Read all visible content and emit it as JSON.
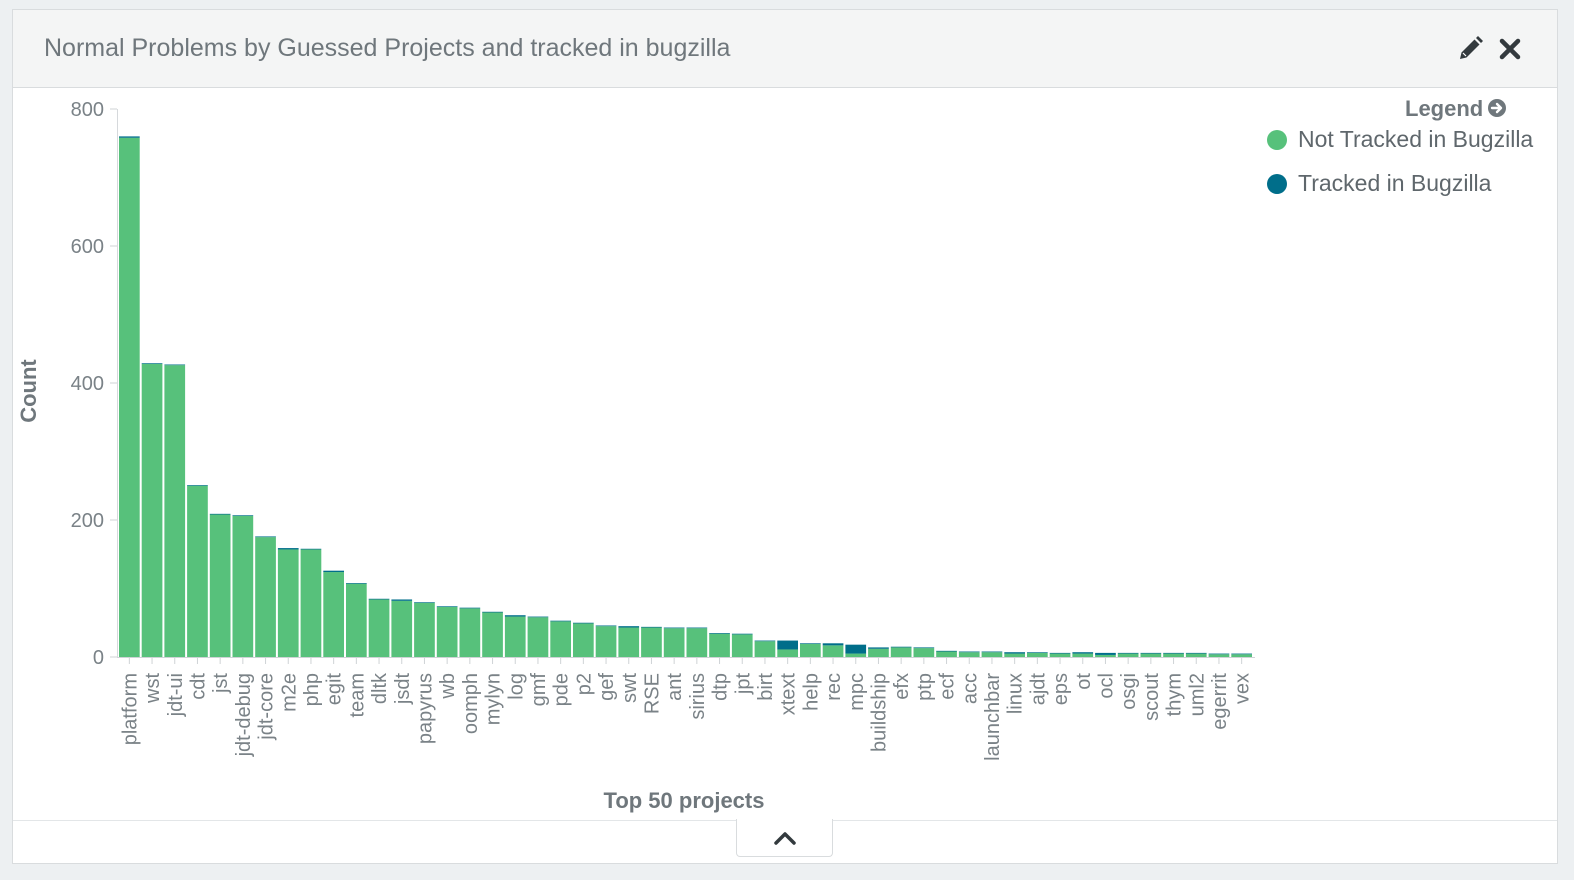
{
  "panel": {
    "title": "Normal Problems by Guessed Projects and tracked in bugzilla",
    "edit_icon": "pencil-icon",
    "close_icon": "close-icon",
    "collapse_icon": "chevron-up-icon"
  },
  "legend": {
    "title": "Legend",
    "toggle_icon": "arrow-circle-right-icon"
  },
  "chart_data": {
    "type": "bar",
    "stacked": true,
    "xlabel": "Top 50 projects",
    "ylabel": "Count",
    "ylim": [
      0,
      800
    ],
    "yticks": [
      0,
      200,
      400,
      600,
      800
    ],
    "grid": false,
    "legend_position": "top-right",
    "categories": [
      "platform",
      "wst",
      "jdt-ui",
      "cdt",
      "jst",
      "jdt-debug",
      "jdt-core",
      "m2e",
      "php",
      "egit",
      "team",
      "dltk",
      "jsdt",
      "papyrus",
      "wb",
      "oomph",
      "mylyn",
      "log",
      "gmf",
      "pde",
      "p2",
      "gef",
      "swt",
      "RSE",
      "ant",
      "sirius",
      "dtp",
      "jpt",
      "birt",
      "xtext",
      "help",
      "rec",
      "mpc",
      "buildship",
      "efx",
      "ptp",
      "ecf",
      "acc",
      "launchbar",
      "linux",
      "ajdt",
      "eps",
      "ot",
      "ocl",
      "osgi",
      "scout",
      "thym",
      "uml2",
      "egerrit",
      "vex"
    ],
    "series": [
      {
        "name": "Not Tracked in Bugzilla",
        "color": "#57c17b",
        "values": [
          758,
          428,
          426,
          250,
          208,
          206,
          175,
          157,
          157,
          124,
          107,
          84,
          82,
          79,
          73,
          71,
          65,
          59,
          58,
          52,
          49,
          45,
          43,
          43,
          42,
          42,
          34,
          33,
          23,
          11,
          19,
          17,
          5,
          12,
          14,
          13,
          8,
          7,
          7,
          5,
          6,
          5,
          5,
          3,
          5,
          5,
          5,
          5,
          4,
          4
        ]
      },
      {
        "name": "Tracked in Bugzilla",
        "color": "#006e8a",
        "values": [
          2,
          1,
          1,
          1,
          1,
          1,
          1,
          2,
          1,
          2,
          1,
          1,
          2,
          1,
          1,
          1,
          1,
          2,
          1,
          1,
          1,
          1,
          2,
          1,
          1,
          1,
          1,
          1,
          1,
          13,
          1,
          3,
          13,
          2,
          1,
          1,
          1,
          1,
          1,
          2,
          1,
          1,
          2,
          3,
          1,
          1,
          1,
          1,
          1,
          1
        ]
      }
    ]
  }
}
